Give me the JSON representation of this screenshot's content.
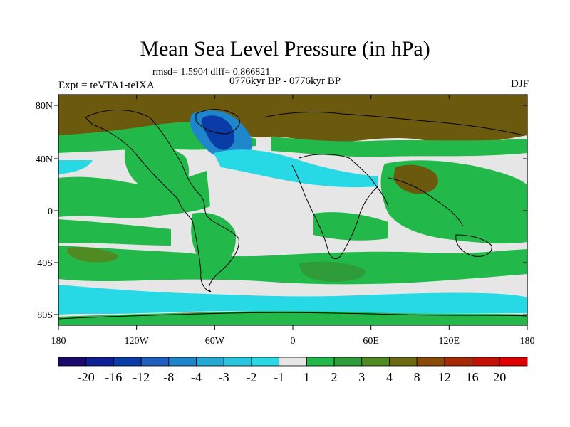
{
  "figure": {
    "title": "Mean Sea Level Pressure (in hPa)",
    "stats": "rmsd= 1.5904 diff= 0.866821",
    "period": "0776kyr BP - 0776kyr BP",
    "experiment": "Expt = teVTA1-teIXA",
    "season": "DJF"
  },
  "axes": {
    "lat_ticks": [
      "80N",
      "40N",
      "0",
      "40S",
      "80S"
    ],
    "lon_ticks": [
      "180",
      "120W",
      "60W",
      "0",
      "60E",
      "120E",
      "180"
    ]
  },
  "colorbar": {
    "labels": [
      "-20",
      "-16",
      "-12",
      "-8",
      "-4",
      "-3",
      "-2",
      "-1",
      "1",
      "2",
      "3",
      "4",
      "8",
      "12",
      "16",
      "20"
    ],
    "colors": [
      "#1a0a6e",
      "#0d1f96",
      "#0a3ca8",
      "#1f5fbf",
      "#1f86cc",
      "#24a8d6",
      "#28c6e0",
      "#26d9e4",
      "#e6e6e6",
      "#22b94a",
      "#2f9c3a",
      "#4f8a22",
      "#6b6a10",
      "#8a4a08",
      "#a82a05",
      "#c41005",
      "#e00000"
    ]
  },
  "colors": {
    "ocean_neutral": "#e6e6e6",
    "green": "#22b94a",
    "cyan": "#26d9e4",
    "brown": "#6b5a0e",
    "blue": "#1f5fbf",
    "dark_blue": "#0a3ca8"
  }
}
